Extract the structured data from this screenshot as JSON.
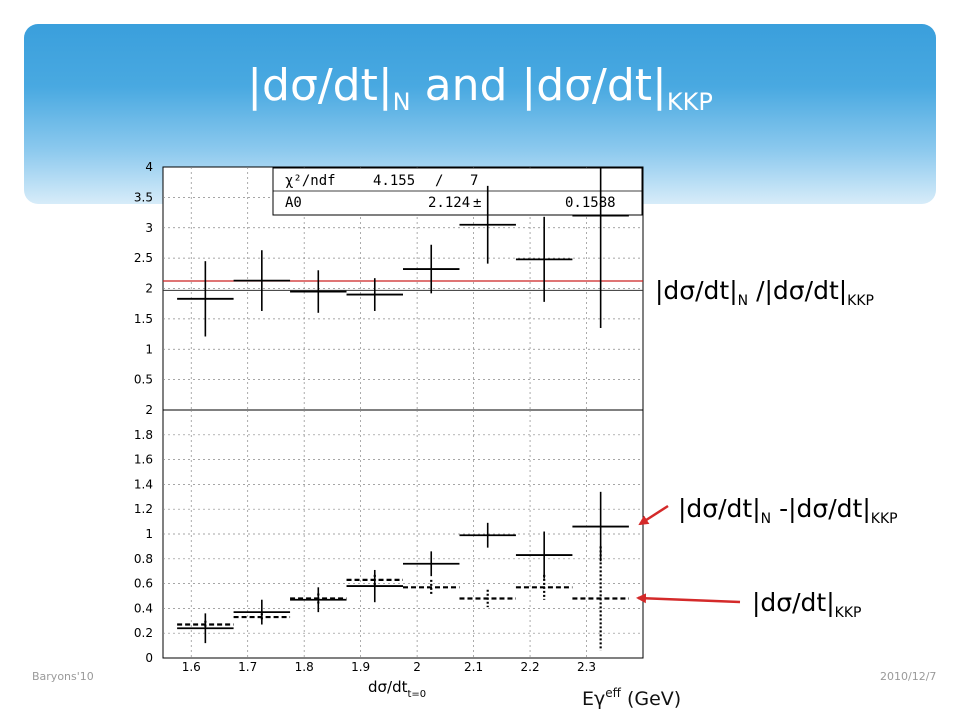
{
  "slide": {
    "title_prefix": "|dσ/dt|",
    "title_sub1": "N",
    "title_mid": " and |dσ/dt|",
    "title_sub2": "KKP",
    "footer_left": "Baryons'10",
    "footer_right": "2010/12/7",
    "xunit_main": "Eγ",
    "xunit_sup": "eff",
    "xunit_rest": " (GeV)"
  },
  "labels": {
    "ratio": {
      "a": "|dσ/dt|",
      "a_sub": "N",
      "b": " /|dσ/dt|",
      "b_sub": "KKP"
    },
    "diff": {
      "a": "|dσ/dt|",
      "a_sub": "N",
      "b": " -|dσ/dt|",
      "b_sub": "KKP"
    },
    "kkp": {
      "a": "|dσ/dt|",
      "a_sub": "KKP"
    }
  },
  "colors": {
    "banner": "#3a9fdc",
    "fit_line": "#cc2222",
    "arrow": "#d42a2a"
  },
  "chart_data": [
    {
      "type": "scatter",
      "panel": "top",
      "xlabel": "dσ/dt_{t=0}",
      "xlim": [
        1.55,
        2.4
      ],
      "ylim": [
        0,
        4
      ],
      "xticks": [
        "1.6",
        "1.7",
        "1.8",
        "1.9",
        "2",
        "2.1",
        "2.2",
        "2.3"
      ],
      "yticks": [
        "0.5",
        "1",
        "1.5",
        "2",
        "2.5",
        "3",
        "3.5",
        "4"
      ],
      "grid": true,
      "fit": {
        "chi2_label": "χ²/ndf",
        "chi2": "4.155",
        "ndf_sep": "/",
        "ndf": "7",
        "param_name": "A0",
        "param_value": "2.124",
        "pm": "±",
        "param_error": "0.1588",
        "value": 2.124,
        "band": [
          1.97,
          2.12
        ]
      },
      "series": [
        {
          "style": "solid",
          "points": [
            {
              "x": 1.625,
              "y": 1.83,
              "xlo": 1.575,
              "xhi": 1.675,
              "err": 0.62
            },
            {
              "x": 1.725,
              "y": 2.13,
              "xlo": 1.675,
              "xhi": 1.775,
              "err": 0.5
            },
            {
              "x": 1.825,
              "y": 1.95,
              "xlo": 1.775,
              "xhi": 1.875,
              "err": 0.35
            },
            {
              "x": 1.925,
              "y": 1.9,
              "xlo": 1.875,
              "xhi": 1.975,
              "err": 0.27
            },
            {
              "x": 2.025,
              "y": 2.32,
              "xlo": 1.975,
              "xhi": 2.075,
              "err": 0.4
            },
            {
              "x": 2.125,
              "y": 3.05,
              "xlo": 2.075,
              "xhi": 2.175,
              "err": 0.64
            },
            {
              "x": 2.225,
              "y": 2.48,
              "xlo": 2.175,
              "xhi": 2.275,
              "err": 0.7
            },
            {
              "x": 2.325,
              "y": 3.2,
              "xlo": 2.275,
              "xhi": 2.375,
              "err": 1.85
            }
          ]
        }
      ]
    },
    {
      "type": "scatter",
      "panel": "bottom",
      "xlabel": "dσ/dt_{t=0}",
      "xlim": [
        1.55,
        2.4
      ],
      "ylim": [
        0,
        2
      ],
      "xticks": [
        "1.6",
        "1.7",
        "1.8",
        "1.9",
        "2",
        "2.1",
        "2.2",
        "2.3"
      ],
      "yticks": [
        "0",
        "0.2",
        "0.4",
        "0.6",
        "0.8",
        "1",
        "1.2",
        "1.4",
        "1.6",
        "1.8",
        "2"
      ],
      "grid": true,
      "series": [
        {
          "label_ref": "diff",
          "style": "solid",
          "points": [
            {
              "x": 1.625,
              "y": 0.24,
              "xlo": 1.575,
              "xhi": 1.675,
              "err": 0.12
            },
            {
              "x": 1.725,
              "y": 0.37,
              "xlo": 1.675,
              "xhi": 1.775,
              "err": 0.1
            },
            {
              "x": 1.825,
              "y": 0.47,
              "xlo": 1.775,
              "xhi": 1.875,
              "err": 0.1
            },
            {
              "x": 1.925,
              "y": 0.58,
              "xlo": 1.875,
              "xhi": 1.975,
              "err": 0.13
            },
            {
              "x": 2.025,
              "y": 0.76,
              "xlo": 1.975,
              "xhi": 2.075,
              "err": 0.1
            },
            {
              "x": 2.125,
              "y": 0.99,
              "xlo": 2.075,
              "xhi": 2.175,
              "err": 0.1
            },
            {
              "x": 2.225,
              "y": 0.83,
              "xlo": 2.175,
              "xhi": 2.275,
              "err": 0.19
            },
            {
              "x": 2.325,
              "y": 1.06,
              "xlo": 2.275,
              "xhi": 2.375,
              "err": 0.28
            }
          ]
        },
        {
          "label_ref": "kkp",
          "style": "dashed",
          "points": [
            {
              "x": 1.625,
              "y": 0.27,
              "xlo": 1.575,
              "xhi": 1.675,
              "err": 0.03
            },
            {
              "x": 1.725,
              "y": 0.33,
              "xlo": 1.675,
              "xhi": 1.775,
              "err": 0.03
            },
            {
              "x": 1.825,
              "y": 0.48,
              "xlo": 1.775,
              "xhi": 1.875,
              "err": 0.04
            },
            {
              "x": 1.925,
              "y": 0.63,
              "xlo": 1.875,
              "xhi": 1.975,
              "err": 0.04
            },
            {
              "x": 2.025,
              "y": 0.57,
              "xlo": 1.975,
              "xhi": 2.075,
              "err": 0.06
            },
            {
              "x": 2.125,
              "y": 0.48,
              "xlo": 2.075,
              "xhi": 2.175,
              "err": 0.07
            },
            {
              "x": 2.225,
              "y": 0.57,
              "xlo": 2.175,
              "xhi": 2.275,
              "err": 0.1
            },
            {
              "x": 2.325,
              "y": 0.48,
              "xlo": 2.275,
              "xhi": 2.375,
              "err": 0.42
            }
          ]
        }
      ]
    }
  ]
}
